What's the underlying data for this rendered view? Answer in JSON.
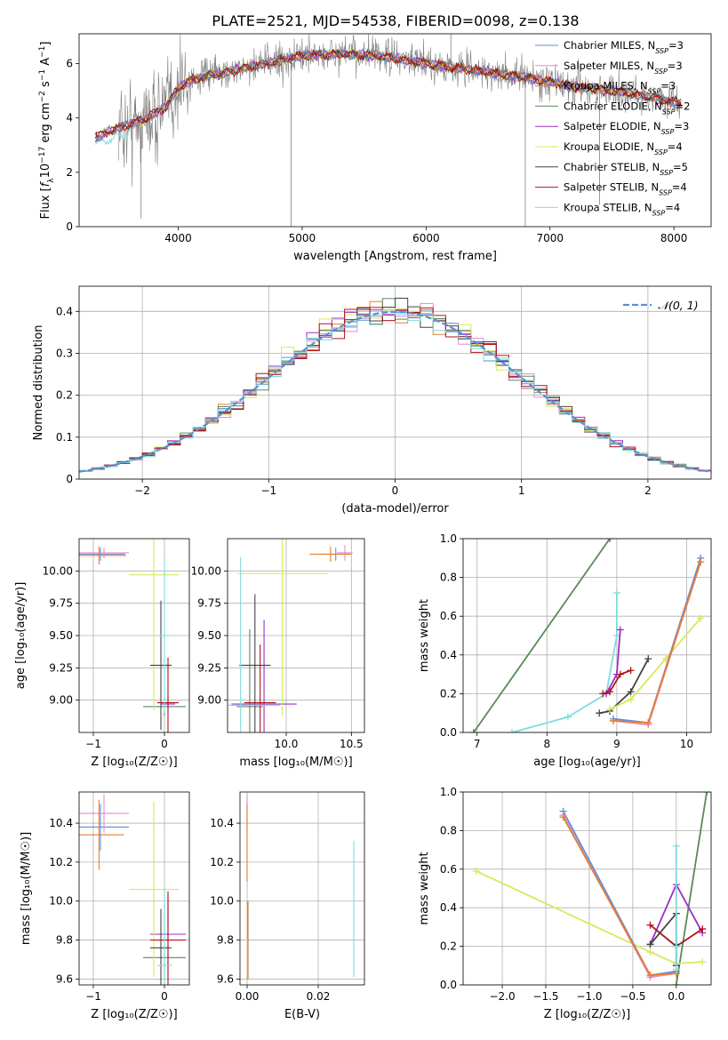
{
  "title": "PLATE=2521, MJD=54538, FIBERID=0098, z=0.138",
  "colors": {
    "chabrier_miles": "#5b8fd6",
    "salpeter_miles": "#e58bd0",
    "kroupa_miles": "#e87d2e",
    "chabrier_elodie": "#5a8a5a",
    "salpeter_elodie": "#9b2ec9",
    "kroupa_elodie": "#d6ea5a",
    "chabrier_stelib": "#444444",
    "salpeter_stelib": "#b0101c",
    "kroupa_stelib": "#7fdbe0",
    "data": "#808080",
    "normal": "#5b8fd6",
    "grid": "#b0b0b0"
  },
  "chart_data": [
    {
      "type": "line",
      "panel": "spectrum",
      "xlabel": "wavelength [Angstrom, rest frame]",
      "ylabel_parts": [
        "Flux [",
        "f",
        "λ",
        "10",
        "−17",
        " erg cm",
        "−2",
        " s",
        "−1",
        " A",
        "−1",
        "]"
      ],
      "xlim": [
        3200,
        8300
      ],
      "ylim": [
        0,
        7.1
      ],
      "xticks": [
        4000,
        5000,
        6000,
        7000,
        8000
      ],
      "yticks": [
        0,
        2,
        4,
        6
      ],
      "legend": [
        {
          "name": "Chabrier MILES",
          "nssp": "3",
          "color_key": "chabrier_miles"
        },
        {
          "name": "Salpeter MILES",
          "nssp": "3",
          "color_key": "salpeter_miles"
        },
        {
          "name": "Kroupa MILES",
          "nssp": "3",
          "color_key": "kroupa_miles"
        },
        {
          "name": "Chabrier ELODIE",
          "nssp": "2",
          "color_key": "chabrier_elodie"
        },
        {
          "name": "Salpeter ELODIE",
          "nssp": "3",
          "color_key": "salpeter_elodie"
        },
        {
          "name": "Kroupa ELODIE",
          "nssp": "4",
          "color_key": "kroupa_elodie"
        },
        {
          "name": "Chabrier STELIB",
          "nssp": "5",
          "color_key": "chabrier_stelib"
        },
        {
          "name": "Salpeter STELIB",
          "nssp": "4",
          "color_key": "salpeter_stelib"
        },
        {
          "name": "Kroupa STELIB",
          "nssp": "4",
          "color_key": "kroupa_stelib"
        }
      ],
      "nssp_label": "N",
      "nssp_sub": "SSP",
      "continuum": {
        "x": [
          3330,
          3500,
          3700,
          3900,
          4000,
          4100,
          4300,
          4500,
          4700,
          5000,
          5300,
          5600,
          6000,
          6400,
          6800,
          7200,
          7600,
          8000,
          8050
        ],
        "y": [
          3.3,
          3.6,
          3.9,
          4.4,
          5.1,
          5.4,
          5.6,
          5.8,
          6.0,
          6.3,
          6.35,
          6.3,
          6.0,
          5.75,
          5.5,
          5.15,
          4.95,
          4.6,
          4.55
        ]
      },
      "data_range": [
        3520,
        8050
      ],
      "model_range": [
        3330,
        8060
      ],
      "data_spikes": [
        {
          "x": 4910,
          "y": 0
        },
        {
          "x": 3700,
          "y": 0.3
        },
        {
          "x": 6800,
          "y": 0
        },
        {
          "x": 7400,
          "y": 0.8
        },
        {
          "x": 6200,
          "y": 7.1
        }
      ]
    },
    {
      "type": "line",
      "panel": "residual-histogram",
      "xlabel": "(data-model)/error",
      "ylabel": "Normed distribution",
      "xlim": [
        -2.5,
        2.5
      ],
      "ylim": [
        0,
        0.46
      ],
      "xticks": [
        -2,
        -1,
        0,
        1,
        2
      ],
      "yticks": [
        0,
        0.1,
        0.2,
        0.3,
        0.4
      ],
      "legend_label": "𝒩(0, 1)",
      "bin_width": 0.1
    },
    {
      "type": "scatter",
      "panel": "age-vs-metallicity",
      "xlabel": "Z [log₁₀(Z/Z☉)]",
      "ylabel": "age  [log₁₀(age/yr)]",
      "xlim": [
        -1.2,
        0.35
      ],
      "ylim": [
        8.75,
        10.25
      ],
      "xticks": [
        -1,
        0
      ],
      "yticks": [
        9.0,
        9.25,
        9.5,
        9.75,
        10.0
      ],
      "ytick_labels": [
        "9.00",
        "9.25",
        "9.50",
        "9.75",
        "10.00"
      ],
      "points": [
        {
          "c": "chabrier_miles",
          "x": -0.9,
          "xerr": 0.35,
          "y": 10.13,
          "yerr": 0.05
        },
        {
          "c": "salpeter_miles",
          "x": -0.85,
          "xerr": 0.35,
          "y": 10.14,
          "yerr": 0.04
        },
        {
          "c": "kroupa_miles",
          "x": -0.92,
          "xerr": 0.38,
          "y": 10.12,
          "yerr": 0.07
        },
        {
          "c": "chabrier_elodie",
          "x": 0.0,
          "xerr": 0.3,
          "y": 8.95,
          "yerr": 0.07
        },
        {
          "c": "salpeter_elodie",
          "x": 0.05,
          "xerr": 0.1,
          "y": 8.97,
          "yerr": 0.06
        },
        {
          "c": "kroupa_elodie",
          "x": -0.15,
          "xerr": 0.35,
          "y": 9.97,
          "yerr": 1.05
        },
        {
          "c": "chabrier_stelib",
          "x": -0.05,
          "xerr": 0.15,
          "y": 9.27,
          "yerr": 0.5
        },
        {
          "c": "salpeter_stelib",
          "x": 0.05,
          "xerr": 0.15,
          "y": 8.98,
          "yerr": 0.35
        },
        {
          "c": "kroupa_stelib",
          "x": 0.0,
          "xerr": 0.1,
          "y": 9.5,
          "yerr": 0.6
        }
      ]
    },
    {
      "type": "scatter",
      "panel": "age-vs-mass",
      "xlabel": "mass [log₁₀(M/M☉)]",
      "xlim": [
        9.55,
        10.6
      ],
      "ylim": [
        8.75,
        10.25
      ],
      "xticks": [
        10.0,
        10.5
      ],
      "xtick_labels": [
        "10.0",
        "10.5"
      ],
      "yticks": [
        9.0,
        9.25,
        9.5,
        9.75,
        10.0
      ],
      "ytick_labels": [
        "9.00",
        "9.25",
        "9.50",
        "9.75",
        "10.00"
      ],
      "points": [
        {
          "c": "chabrier_miles",
          "x": 10.38,
          "xerr": 0.1,
          "y": 10.13,
          "yerr": 0.05
        },
        {
          "c": "salpeter_miles",
          "x": 10.45,
          "xerr": 0.06,
          "y": 10.14,
          "yerr": 0.06
        },
        {
          "c": "kroupa_miles",
          "x": 10.34,
          "xerr": 0.16,
          "y": 10.13,
          "yerr": 0.06
        },
        {
          "c": "chabrier_elodie",
          "x": 9.72,
          "xerr": 0.1,
          "y": 8.95,
          "yerr": 0.6
        },
        {
          "c": "salpeter_elodie",
          "x": 9.83,
          "xerr": 0.25,
          "y": 8.97,
          "yerr": 0.65
        },
        {
          "c": "kroupa_elodie",
          "x": 9.97,
          "xerr": 0.35,
          "y": 9.98,
          "yerr": 1.1
        },
        {
          "c": "chabrier_stelib",
          "x": 9.76,
          "xerr": 0.12,
          "y": 9.27,
          "yerr": 0.55
        },
        {
          "c": "salpeter_stelib",
          "x": 9.8,
          "xerr": 0.12,
          "y": 8.98,
          "yerr": 0.45
        },
        {
          "c": "kroupa_stelib",
          "x": 9.65,
          "xerr": 0.3,
          "y": 8.96,
          "yerr": 1.15
        }
      ]
    },
    {
      "type": "line",
      "panel": "mass-weight-vs-age",
      "xlabel": "age  [log₁₀(age/yr)]",
      "ylabel": "mass weight",
      "xlim": [
        6.8,
        10.35
      ],
      "ylim": [
        0,
        1.0
      ],
      "xticks": [
        7,
        8,
        9,
        10
      ],
      "yticks": [
        0,
        0.2,
        0.4,
        0.6,
        0.8,
        1.0
      ],
      "ytick_labels": [
        "0.0",
        "0.2",
        "0.4",
        "0.6",
        "0.8",
        "1.0"
      ],
      "series": [
        {
          "c": "chabrier_elodie",
          "x": [
            6.95,
            8.9
          ],
          "y": [
            0.0,
            1.0
          ]
        },
        {
          "c": "kroupa_stelib",
          "x": [
            7.5,
            8.3,
            8.85,
            9.0,
            9.0
          ],
          "y": [
            0.0,
            0.08,
            0.2,
            0.5,
            0.72
          ]
        },
        {
          "c": "salpeter_elodie",
          "x": [
            8.85,
            9.0,
            9.05
          ],
          "y": [
            0.2,
            0.3,
            0.53
          ]
        },
        {
          "c": "salpeter_stelib",
          "x": [
            8.8,
            8.9,
            9.05,
            9.2
          ],
          "y": [
            0.2,
            0.21,
            0.3,
            0.32
          ]
        },
        {
          "c": "chabrier_stelib",
          "x": [
            8.75,
            8.9,
            9.2,
            9.45
          ],
          "y": [
            0.1,
            0.11,
            0.21,
            0.38
          ]
        },
        {
          "c": "kroupa_elodie",
          "x": [
            8.9,
            9.2,
            9.7,
            10.2
          ],
          "y": [
            0.12,
            0.17,
            0.38,
            0.59
          ]
        },
        {
          "c": "chabrier_miles",
          "x": [
            8.95,
            9.45,
            10.2
          ],
          "y": [
            0.07,
            0.05,
            0.9
          ]
        },
        {
          "c": "salpeter_miles",
          "x": [
            8.95,
            9.45,
            10.2
          ],
          "y": [
            0.06,
            0.04,
            0.88
          ]
        },
        {
          "c": "kroupa_miles",
          "x": [
            8.95,
            9.45,
            10.2
          ],
          "y": [
            0.06,
            0.05,
            0.88
          ]
        }
      ]
    },
    {
      "type": "scatter",
      "panel": "mass-vs-metallicity",
      "xlabel": "Z [log₁₀(Z/Z☉)]",
      "ylabel": "mass [log₁₀(M/M☉)]",
      "xlim": [
        -1.2,
        0.35
      ],
      "ylim": [
        9.57,
        10.56
      ],
      "xticks": [
        -1,
        0
      ],
      "yticks": [
        9.6,
        9.8,
        10.0,
        10.2,
        10.4
      ],
      "ytick_labels": [
        "9.6",
        "9.8",
        "10.0",
        "10.2",
        "10.4"
      ],
      "points": [
        {
          "c": "chabrier_miles",
          "x": -0.9,
          "xerr": 0.4,
          "y": 10.38,
          "yerr": 0.12
        },
        {
          "c": "salpeter_miles",
          "x": -0.85,
          "xerr": 0.35,
          "y": 10.45,
          "yerr": 0.1
        },
        {
          "c": "kroupa_miles",
          "x": -0.92,
          "xerr": 0.35,
          "y": 10.34,
          "yerr": 0.18
        },
        {
          "c": "chabrier_elodie",
          "x": 0.0,
          "xerr": 0.3,
          "y": 9.71,
          "yerr": 0.28
        },
        {
          "c": "salpeter_elodie",
          "x": 0.05,
          "xerr": 0.25,
          "y": 9.83,
          "yerr": 0.2
        },
        {
          "c": "kroupa_elodie",
          "x": -0.15,
          "xerr": 0.35,
          "y": 10.06,
          "yerr": 0.45
        },
        {
          "c": "chabrier_stelib",
          "x": -0.05,
          "xerr": 0.15,
          "y": 9.76,
          "yerr": 0.2
        },
        {
          "c": "salpeter_stelib",
          "x": 0.05,
          "xerr": 0.25,
          "y": 9.8,
          "yerr": 0.25
        },
        {
          "c": "kroupa_stelib",
          "x": 0.0,
          "xerr": 0.1,
          "y": 9.67,
          "yerr": 0.4
        }
      ]
    },
    {
      "type": "scatter",
      "panel": "mass-vs-extinction",
      "xlabel": "E(B-V)",
      "xlim": [
        -0.002,
        0.033
      ],
      "ylim": [
        9.57,
        10.56
      ],
      "xticks": [
        0.0,
        0.02
      ],
      "xtick_labels": [
        "0.00",
        "0.02"
      ],
      "yticks": [
        9.6,
        9.8,
        10.0,
        10.2,
        10.4
      ],
      "ytick_labels": [
        "9.6",
        "9.8",
        "10.0",
        "10.2",
        "10.4"
      ],
      "points": [
        {
          "c": "salpeter_miles",
          "x": 0.0,
          "xerr": 0.0,
          "y": 10.45,
          "yerr": 0.1
        },
        {
          "c": "kroupa_miles",
          "x": 0.0,
          "xerr": 0.0,
          "y": 10.3,
          "yerr": 0.2
        },
        {
          "c": "salpeter_elodie",
          "x": 0.0,
          "xerr": 0.0,
          "y": 9.8,
          "yerr": 0.2
        },
        {
          "c": "salpeter_stelib",
          "x": 0.0002,
          "xerr": 0.0,
          "y": 9.8,
          "yerr": 0.2
        },
        {
          "c": "chabrier_elodie",
          "x": 0.0001,
          "xerr": 0.0,
          "y": 9.71,
          "yerr": 0.1
        },
        {
          "c": "kroupa_elodie",
          "x": 0.0,
          "xerr": 0.0,
          "y": 9.8,
          "yerr": 0.2
        },
        {
          "c": "kroupa_stelib",
          "x": 0.03,
          "xerr": 0.0,
          "y": 9.96,
          "yerr": 0.35
        }
      ]
    },
    {
      "type": "line",
      "panel": "mass-weight-vs-metallicity",
      "xlabel": "Z [log₁₀(Z/Z☉)]",
      "ylabel": "mass weight",
      "xlim": [
        -2.45,
        0.4
      ],
      "ylim": [
        0,
        1.0
      ],
      "xticks": [
        -2.0,
        -1.5,
        -1.0,
        -0.5,
        0.0
      ],
      "xtick_labels": [
        "−2.0",
        "−1.5",
        "−1.0",
        "−0.5",
        "0.0"
      ],
      "yticks": [
        0,
        0.2,
        0.4,
        0.6,
        0.8,
        1.0
      ],
      "ytick_labels": [
        "0.0",
        "0.2",
        "0.4",
        "0.6",
        "0.8",
        "1.0"
      ],
      "series": [
        {
          "c": "chabrier_elodie",
          "x": [
            0.0,
            0.35
          ],
          "y": [
            0.0,
            1.0
          ]
        },
        {
          "c": "kroupa_elodie",
          "x": [
            -2.3,
            -0.3,
            0.0,
            0.3
          ],
          "y": [
            0.59,
            0.17,
            0.11,
            0.12
          ]
        },
        {
          "c": "chabrier_miles",
          "x": [
            -1.3,
            -0.3,
            0.0
          ],
          "y": [
            0.9,
            0.05,
            0.07
          ]
        },
        {
          "c": "salpeter_miles",
          "x": [
            -1.3,
            -0.3,
            0.0
          ],
          "y": [
            0.88,
            0.04,
            0.06
          ]
        },
        {
          "c": "kroupa_miles",
          "x": [
            -1.3,
            -0.3,
            0.0
          ],
          "y": [
            0.87,
            0.05,
            0.06
          ]
        },
        {
          "c": "salpeter_elodie",
          "x": [
            -0.3,
            0.0,
            0.3
          ],
          "y": [
            0.21,
            0.52,
            0.27
          ]
        },
        {
          "c": "salpeter_stelib",
          "x": [
            -0.3,
            0.0,
            0.3
          ],
          "y": [
            0.31,
            0.2,
            0.29
          ]
        },
        {
          "c": "chabrier_stelib",
          "x": [
            -0.3,
            0.0,
            0.0,
            0.0
          ],
          "y": [
            0.21,
            0.37,
            0.21,
            0.1
          ]
        },
        {
          "c": "kroupa_stelib",
          "x": [
            0.0,
            0.0,
            0.0
          ],
          "y": [
            0.72,
            0.2,
            0.08
          ]
        }
      ]
    }
  ]
}
